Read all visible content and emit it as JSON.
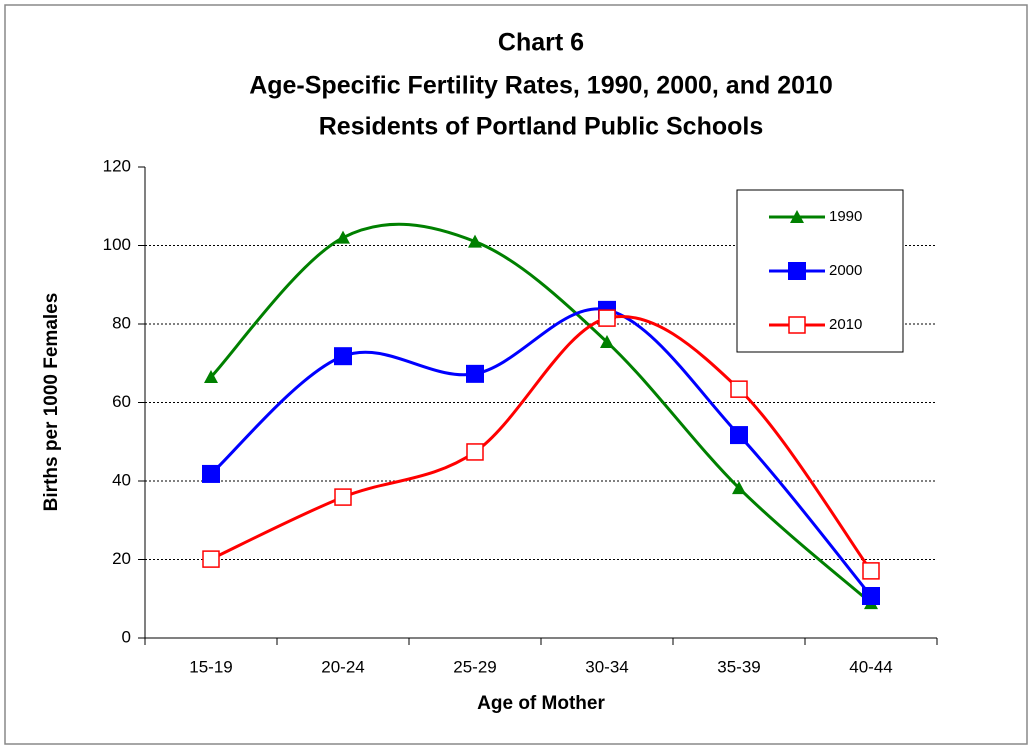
{
  "chart_data": {
    "type": "line",
    "title": [
      "Chart 6",
      "Age-Specific Fertility Rates, 1990, 2000, and 2010",
      "Residents of Portland Public Schools"
    ],
    "x_label": "Age of Mother",
    "y_label": "Births per 1000 Females",
    "categories": [
      "15-19",
      "20-24",
      "25-29",
      "30-34",
      "35-39",
      "40-44"
    ],
    "series": [
      {
        "name": "1990",
        "color": "#008000",
        "marker": "triangle",
        "values": [
          66.5,
          102,
          101,
          75.4,
          38.2,
          8.9
        ]
      },
      {
        "name": "2000",
        "color": "#0000ff",
        "marker": "square",
        "values": [
          41.8,
          71.8,
          67.3,
          83.6,
          51.7,
          10.7
        ]
      },
      {
        "name": "2010",
        "color": "#ff0000",
        "marker": "hollow-square",
        "values": [
          20.1,
          35.9,
          47.4,
          81.5,
          63.4,
          17.1
        ]
      }
    ],
    "ylim": [
      0,
      120
    ],
    "yticks": [
      0,
      20,
      40,
      60,
      80,
      100,
      120
    ],
    "grid": true,
    "smooth": true,
    "legend": "upper right"
  }
}
